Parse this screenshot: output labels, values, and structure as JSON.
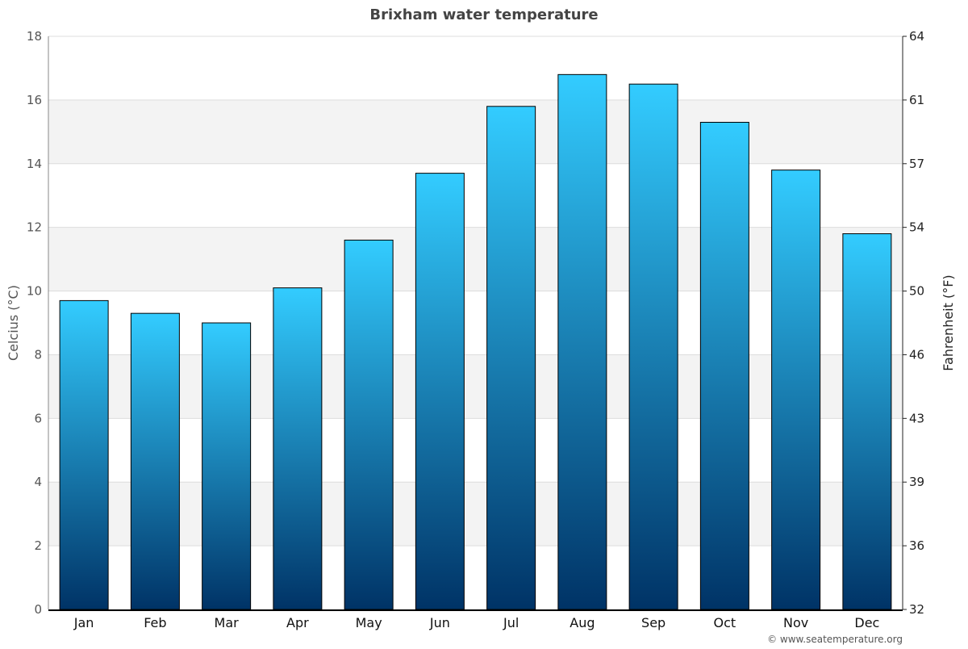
{
  "chart_data": {
    "type": "bar",
    "title": "Brixham water temperature",
    "ylabel": "Celcius (°C)",
    "ylabel_right": "Fahrenheit (°F)",
    "xlabel": "",
    "categories": [
      "Jan",
      "Feb",
      "Mar",
      "Apr",
      "May",
      "Jun",
      "Jul",
      "Aug",
      "Sep",
      "Oct",
      "Nov",
      "Dec"
    ],
    "values": [
      9.7,
      9.3,
      9.0,
      10.1,
      11.6,
      13.7,
      15.8,
      16.8,
      16.5,
      15.3,
      13.8,
      11.8
    ],
    "ylim": [
      0,
      18
    ],
    "yticks": [
      0,
      2,
      4,
      6,
      8,
      10,
      12,
      14,
      16,
      18
    ],
    "yticks_right": [
      "32",
      "36",
      "39",
      "43",
      "46",
      "50",
      "54",
      "57",
      "61",
      "64"
    ],
    "grid": true,
    "bar_gradient": {
      "top": "#33ccff",
      "bottom": "#003366"
    },
    "band_color": "#f3f3f3"
  },
  "credit": "© www.seatemperature.org"
}
